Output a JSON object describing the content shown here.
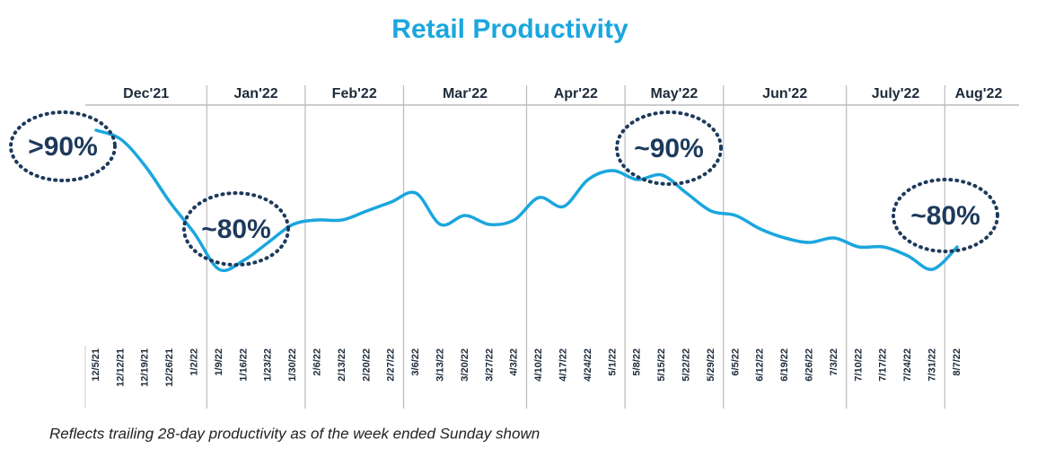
{
  "chart_data": {
    "type": "line",
    "title": "Retail Productivity",
    "footnote": "Reflects trailing 28-day productivity as of the week ended Sunday shown",
    "months": [
      "Dec'21",
      "Jan'22",
      "Feb'22",
      "Mar'22",
      "Apr'22",
      "May'22",
      "Jun'22",
      "July'22",
      "Aug'22"
    ],
    "categories": [
      "12/5/21",
      "12/12/21",
      "12/19/21",
      "12/26/21",
      "1/2/22",
      "1/9/22",
      "1/16/22",
      "1/23/22",
      "1/30/22",
      "2/6/22",
      "2/13/22",
      "2/20/22",
      "2/27/22",
      "3/6/22",
      "3/13/22",
      "3/20/22",
      "3/27/22",
      "4/3/22",
      "4/10/22",
      "4/17/22",
      "4/24/22",
      "5/1/22",
      "5/8/22",
      "5/15/22",
      "5/22/22",
      "5/29/22",
      "6/5/22",
      "6/12/22",
      "6/19/22",
      "6/26/22",
      "7/3/22",
      "7/10/22",
      "7/17/22",
      "7/24/22",
      "7/31/22",
      "8/7/22"
    ],
    "values": [
      94.5,
      93.5,
      90.5,
      86.5,
      83,
      79,
      80,
      82,
      84,
      84.5,
      84.5,
      85.5,
      86.5,
      87.5,
      84,
      85,
      84,
      84.5,
      87,
      86,
      89,
      90,
      89,
      89.5,
      87.5,
      85.5,
      85,
      83.5,
      82.5,
      82,
      82.5,
      81.5,
      81.5,
      80.5,
      79,
      81.5
    ],
    "color": "#1ba6de",
    "ylim": [
      70.5,
      97.5
    ],
    "annotations": [
      ">90%",
      "~80%",
      "~90%",
      "~80%"
    ]
  }
}
